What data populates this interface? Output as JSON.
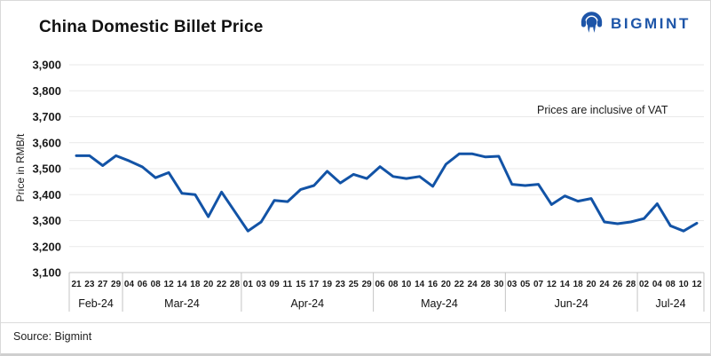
{
  "header": {
    "title": "China Domestic Billet Price"
  },
  "brand": {
    "name": "BIGMINT"
  },
  "annotation": {
    "vat_note": "Prices are inclusive of VAT"
  },
  "footer": {
    "source": "Source: Bigmint"
  },
  "colors": {
    "line": "#1253a6",
    "brand": "#1d55a8",
    "grid": "#e9e9e9",
    "axis": "#c4c4c4",
    "tick_text": "#1a1a1a"
  },
  "chart_data": {
    "type": "line",
    "title": "China Domestic Billet Price",
    "xlabel": "",
    "ylabel": "Price in RMB/t",
    "ylim": [
      3100,
      3900
    ],
    "ytick_step": 100,
    "grid": "horizontal",
    "legend": "none",
    "annotation": "Prices are inclusive of VAT",
    "months": [
      {
        "label": "Feb-24",
        "days": [
          "21",
          "23",
          "27",
          "29"
        ]
      },
      {
        "label": "Mar-24",
        "days": [
          "04",
          "06",
          "08",
          "12",
          "14",
          "18",
          "20",
          "22",
          "28"
        ]
      },
      {
        "label": "Apr-24",
        "days": [
          "01",
          "03",
          "09",
          "11",
          "15",
          "17",
          "19",
          "23",
          "25",
          "29"
        ]
      },
      {
        "label": "May-24",
        "days": [
          "06",
          "08",
          "10",
          "14",
          "16",
          "20",
          "22",
          "24",
          "28",
          "30"
        ]
      },
      {
        "label": "Jun-24",
        "days": [
          "03",
          "05",
          "07",
          "12",
          "14",
          "18",
          "20",
          "24",
          "26",
          "28"
        ]
      },
      {
        "label": "Jul-24",
        "days": [
          "02",
          "04",
          "08",
          "10",
          "12"
        ]
      }
    ],
    "series": [
      {
        "name": "China Domestic Billet Price (RMB/t)",
        "values": [
          3550,
          3550,
          3512,
          3550,
          3530,
          3507,
          3465,
          3485,
          3405,
          3400,
          3315,
          3410,
          3335,
          3260,
          3295,
          3378,
          3373,
          3420,
          3435,
          3490,
          3445,
          3478,
          3462,
          3508,
          3470,
          3462,
          3470,
          3432,
          3517,
          3557,
          3557,
          3545,
          3548,
          3440,
          3435,
          3440,
          3362,
          3395,
          3375,
          3385,
          3295,
          3288,
          3295,
          3308,
          3365,
          3280,
          3260,
          3290
        ]
      }
    ]
  }
}
